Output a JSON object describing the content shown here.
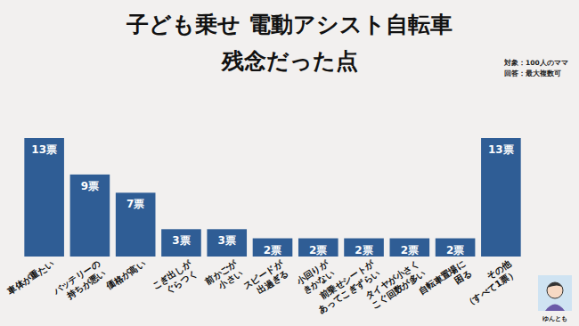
{
  "chart_data": {
    "type": "bar",
    "title": "子ども乗せ 電動アシスト自転車\n残念だった点",
    "notes": [
      "対象：100人のママ",
      "回答：最大複数可"
    ],
    "credit": "ゆんとも",
    "categories": [
      "車体が重たい",
      "バッテリーの\n持ちが悪い",
      "価格が高い",
      "こぎ出しが\nぐらつく",
      "前かごが\n小さい",
      "スピードが\n出過ぎる",
      "小回りが\nきかない",
      "前乗せシートが\nあってこぎずらい",
      "タイヤが小さく\nこぐ回数が多い",
      "自転車置場に\n困る",
      "その他\n（すべて1票）"
    ],
    "values": [
      13,
      9,
      7,
      3,
      3,
      2,
      2,
      2,
      2,
      2,
      13
    ],
    "value_labels": [
      "13票",
      "9票",
      "7票",
      "3票",
      "3票",
      "2票",
      "2票",
      "2票",
      "2票",
      "2票",
      "13票"
    ],
    "color": "#2f5d95",
    "ylim": [
      0,
      13
    ],
    "data_labels": true,
    "tick_labels": "x",
    "grid": false
  }
}
